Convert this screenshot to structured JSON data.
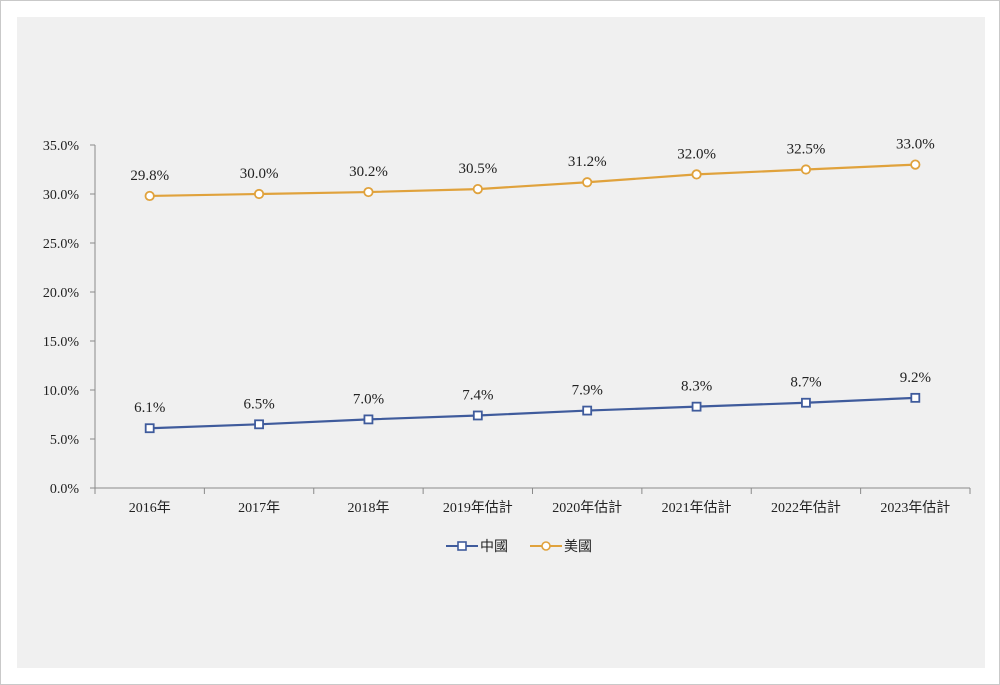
{
  "chart_data": {
    "type": "line",
    "title": "",
    "xlabel": "",
    "ylabel": "",
    "categories": [
      "2016年",
      "2017年",
      "2018年",
      "2019年估計",
      "2020年估計",
      "2021年估計",
      "2022年估計",
      "2023年估計"
    ],
    "ylim": [
      0,
      35
    ],
    "yticks": [
      "0.0%",
      "5.0%",
      "10.0%",
      "15.0%",
      "20.0%",
      "25.0%",
      "30.0%",
      "35.0%"
    ],
    "legend_position": "bottom",
    "series": [
      {
        "name": "中國",
        "marker": "square",
        "color": "#3f5b9c",
        "values": [
          6.1,
          6.5,
          7.0,
          7.4,
          7.9,
          8.3,
          8.7,
          9.2
        ],
        "labels": [
          "6.1%",
          "6.5%",
          "7.0%",
          "7.4%",
          "7.9%",
          "8.3%",
          "8.7%",
          "9.2%"
        ]
      },
      {
        "name": "美國",
        "marker": "circle",
        "color": "#e0a23c",
        "values": [
          29.8,
          30.0,
          30.2,
          30.5,
          31.2,
          32.0,
          32.5,
          33.0
        ],
        "labels": [
          "29.8%",
          "30.0%",
          "30.2%",
          "30.5%",
          "31.2%",
          "32.0%",
          "32.5%",
          "33.0%"
        ]
      }
    ]
  }
}
